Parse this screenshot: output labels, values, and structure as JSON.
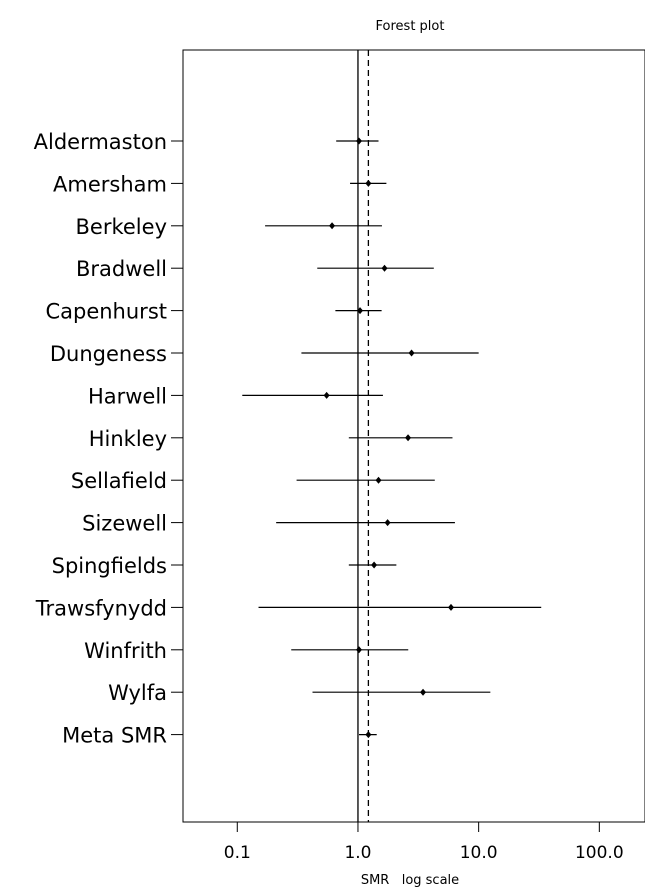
{
  "chart_data": {
    "type": "forest",
    "title": "Forest plot",
    "xlabel": "SMR   log scale",
    "x_scale": "log",
    "xlim": [
      0.0355,
      239
    ],
    "xticks": [
      0.1,
      1.0,
      10.0,
      100.0
    ],
    "xtick_labels": [
      "0.1",
      "1.0",
      "10.0",
      "100.0"
    ],
    "reference_lines": [
      {
        "value": 1.0,
        "style": "solid"
      },
      {
        "value": 1.22,
        "style": "dashed"
      }
    ],
    "grid": false,
    "studies": [
      {
        "label": "Aldermaston",
        "smr": 1.02,
        "lower": 0.66,
        "upper": 1.48
      },
      {
        "label": "Amersham",
        "smr": 1.22,
        "lower": 0.86,
        "upper": 1.72
      },
      {
        "label": "Berkeley",
        "smr": 0.61,
        "lower": 0.17,
        "upper": 1.58
      },
      {
        "label": "Bradwell",
        "smr": 1.66,
        "lower": 0.46,
        "upper": 4.25
      },
      {
        "label": "Capenhurst",
        "smr": 1.04,
        "lower": 0.65,
        "upper": 1.57
      },
      {
        "label": "Dungeness",
        "smr": 2.78,
        "lower": 0.34,
        "upper": 10.0
      },
      {
        "label": "Harwell",
        "smr": 0.55,
        "lower": 0.11,
        "upper": 1.61
      },
      {
        "label": "Hinkley",
        "smr": 2.6,
        "lower": 0.84,
        "upper": 6.07
      },
      {
        "label": "Sellafield",
        "smr": 1.48,
        "lower": 0.31,
        "upper": 4.33
      },
      {
        "label": "Sizewell",
        "smr": 1.76,
        "lower": 0.21,
        "upper": 6.36
      },
      {
        "label": "Spingfields",
        "smr": 1.36,
        "lower": 0.84,
        "upper": 2.08
      },
      {
        "label": "Trawsfynydd",
        "smr": 5.9,
        "lower": 0.15,
        "upper": 33.0
      },
      {
        "label": "Winfrith",
        "smr": 1.02,
        "lower": 0.28,
        "upper": 2.61
      },
      {
        "label": "Wylfa",
        "smr": 3.46,
        "lower": 0.42,
        "upper": 12.5
      },
      {
        "label": "Meta SMR",
        "smr": 1.22,
        "lower": 1.02,
        "upper": 1.43
      }
    ]
  }
}
